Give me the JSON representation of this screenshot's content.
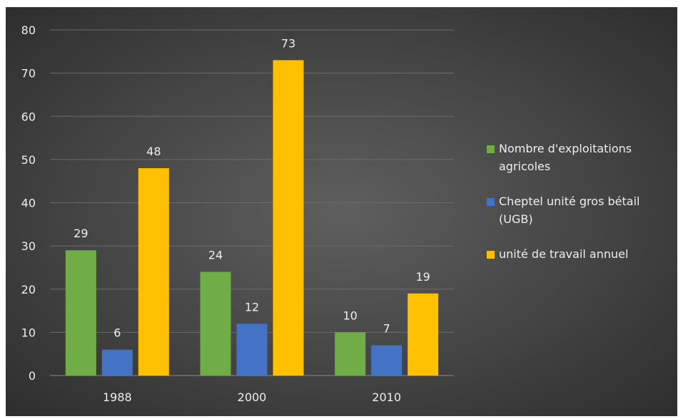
{
  "colors": {
    "background_outer": "#2e2e2e",
    "background_inner": "#5f5f5f",
    "gridline": "#6c6c6c",
    "text": "#eeeeee"
  },
  "chart_data": {
    "type": "bar",
    "title": "",
    "xlabel": "",
    "ylabel": "",
    "categories": [
      "1988",
      "2000",
      "2010"
    ],
    "ylim": [
      0,
      80
    ],
    "yticks": [
      0,
      10,
      20,
      30,
      40,
      50,
      60,
      70,
      80
    ],
    "grid": true,
    "legend_position": "right",
    "data_labels": true,
    "series": [
      {
        "name": "Nombre d'exploitations agricoles",
        "values": [
          29,
          24,
          10
        ],
        "color": "#70ad47",
        "legend_lines": [
          "Nombre d'exploitations",
          "agricoles"
        ]
      },
      {
        "name": "Cheptel unité gros bétail (UGB)",
        "values": [
          6,
          12,
          7
        ],
        "color": "#4472c4",
        "legend_lines": [
          "Cheptel unité gros bétail",
          "(UGB)"
        ]
      },
      {
        "name": "unité de travail annuel",
        "values": [
          48,
          73,
          19
        ],
        "color": "#ffc000",
        "legend_lines": [
          "unité de travail annuel"
        ]
      }
    ]
  }
}
